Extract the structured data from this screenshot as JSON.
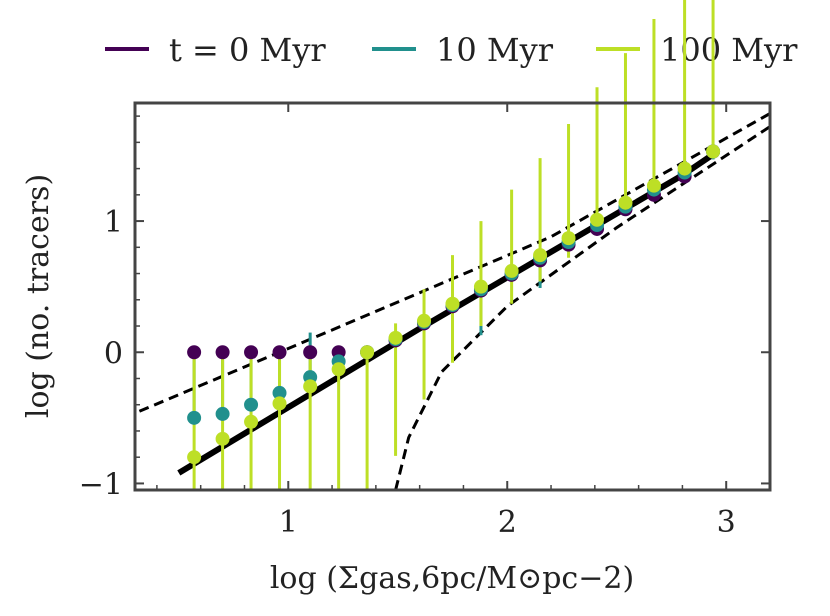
{
  "chart_data": {
    "type": "scatter",
    "xlabel": "log (Σgas,6pc/M⊙pc−2)",
    "ylabel": "log (no. tracers)",
    "xlim": [
      0.3,
      3.2
    ],
    "ylim": [
      -1.05,
      1.9
    ],
    "xticks": [
      1,
      2,
      3
    ],
    "yticks": [
      -1,
      0,
      1
    ],
    "xtick_labels": [
      "1",
      "2",
      "3"
    ],
    "ytick_labels": [
      "−1",
      "0",
      "1"
    ],
    "legend_position": "top, outside",
    "grid": false,
    "series": [
      {
        "name": "t = 0 Myr",
        "color": "#440154",
        "x": [
          0.57,
          0.7,
          0.83,
          0.96,
          1.1,
          1.23,
          1.36,
          1.49,
          1.62,
          1.75,
          1.88,
          2.02,
          2.15,
          2.28,
          2.41,
          2.54,
          2.67,
          2.81,
          2.94
        ],
        "y": [
          0.0,
          0.0,
          0.0,
          0.0,
          0.0,
          0.0,
          0.0,
          0.09,
          0.22,
          0.35,
          0.47,
          0.59,
          0.7,
          0.82,
          0.94,
          1.09,
          1.2,
          1.34,
          1.53
        ],
        "yerr_low": [
          0,
          0,
          0,
          0,
          0,
          0,
          0,
          0,
          0,
          0,
          0,
          0,
          0,
          0,
          0,
          0,
          0,
          0,
          0
        ],
        "yerr_high": [
          0,
          0,
          0,
          0,
          0,
          0,
          0,
          0,
          0,
          0,
          0,
          0,
          0,
          0,
          0,
          0,
          0,
          0,
          0
        ]
      },
      {
        "name": "10 Myr",
        "color": "#21908d",
        "x": [
          0.57,
          0.7,
          0.83,
          0.96,
          1.1,
          1.23,
          1.36,
          1.49,
          1.62,
          1.75,
          1.88,
          2.02,
          2.15,
          2.28,
          2.41,
          2.54,
          2.67,
          2.81,
          2.94
        ],
        "y": [
          -0.5,
          -0.47,
          -0.4,
          -0.31,
          -0.19,
          -0.07,
          0.0,
          0.1,
          0.23,
          0.36,
          0.48,
          0.6,
          0.72,
          0.84,
          0.97,
          1.11,
          1.24,
          1.37,
          1.53
        ],
        "yerr_low": [
          0.0,
          0.0,
          0.0,
          0.0,
          0.0,
          0.0,
          0.0,
          0.0,
          0.0,
          0.0,
          0.35,
          0.0,
          0.23,
          0.0,
          0.0,
          0.0,
          0.0,
          0.0,
          0.06
        ],
        "yerr_high": [
          0.5,
          0.47,
          0.4,
          0.31,
          0.34,
          0.07,
          0.0,
          0.0,
          0.0,
          0.0,
          0.0,
          0.0,
          0.0,
          0.0,
          0.0,
          0.0,
          0.0,
          0.0,
          0.0
        ]
      },
      {
        "name": "100 Myr",
        "color": "#bddf26",
        "x": [
          0.57,
          0.7,
          0.83,
          0.96,
          1.1,
          1.23,
          1.36,
          1.49,
          1.62,
          1.75,
          1.88,
          2.02,
          2.15,
          2.28,
          2.41,
          2.54,
          2.67,
          2.81,
          2.94
        ],
        "y": [
          -0.8,
          -0.66,
          -0.53,
          -0.39,
          -0.26,
          -0.13,
          0.0,
          0.11,
          0.24,
          0.37,
          0.5,
          0.62,
          0.74,
          0.87,
          1.01,
          1.14,
          1.27,
          1.4,
          1.53
        ],
        "yerr_low": [
          0.25,
          0.4,
          0.52,
          0.66,
          0.79,
          0.92,
          1.05,
          0.9,
          0.6,
          0.45,
          0.3,
          0.25,
          0.2,
          0.15,
          0.1,
          0.06,
          0.04,
          0.04,
          0.02
        ],
        "yerr_high": [
          0.8,
          0.66,
          0.53,
          0.39,
          0.26,
          0.13,
          0.0,
          0.11,
          0.24,
          0.37,
          0.5,
          0.62,
          0.74,
          0.87,
          1.01,
          1.14,
          1.27,
          1.4,
          1.53
        ]
      }
    ],
    "reference_lines": [
      {
        "style": "solid",
        "color": "#000000",
        "x": [
          0.5,
          1.6,
          2.8,
          2.96
        ],
        "y": [
          -0.92,
          0.18,
          1.35,
          1.53
        ]
      },
      {
        "style": "dashed",
        "color": "#000000",
        "x": [
          0.32,
          1.2,
          2.2,
          3.2
        ],
        "y": [
          -0.45,
          0.17,
          0.88,
          1.82
        ]
      },
      {
        "style": "dashed",
        "color": "#000000",
        "x": [
          1.49,
          1.55,
          1.7,
          2.0,
          2.5,
          3.2
        ],
        "y": [
          -1.05,
          -0.65,
          -0.15,
          0.35,
          0.95,
          1.72
        ]
      }
    ]
  }
}
